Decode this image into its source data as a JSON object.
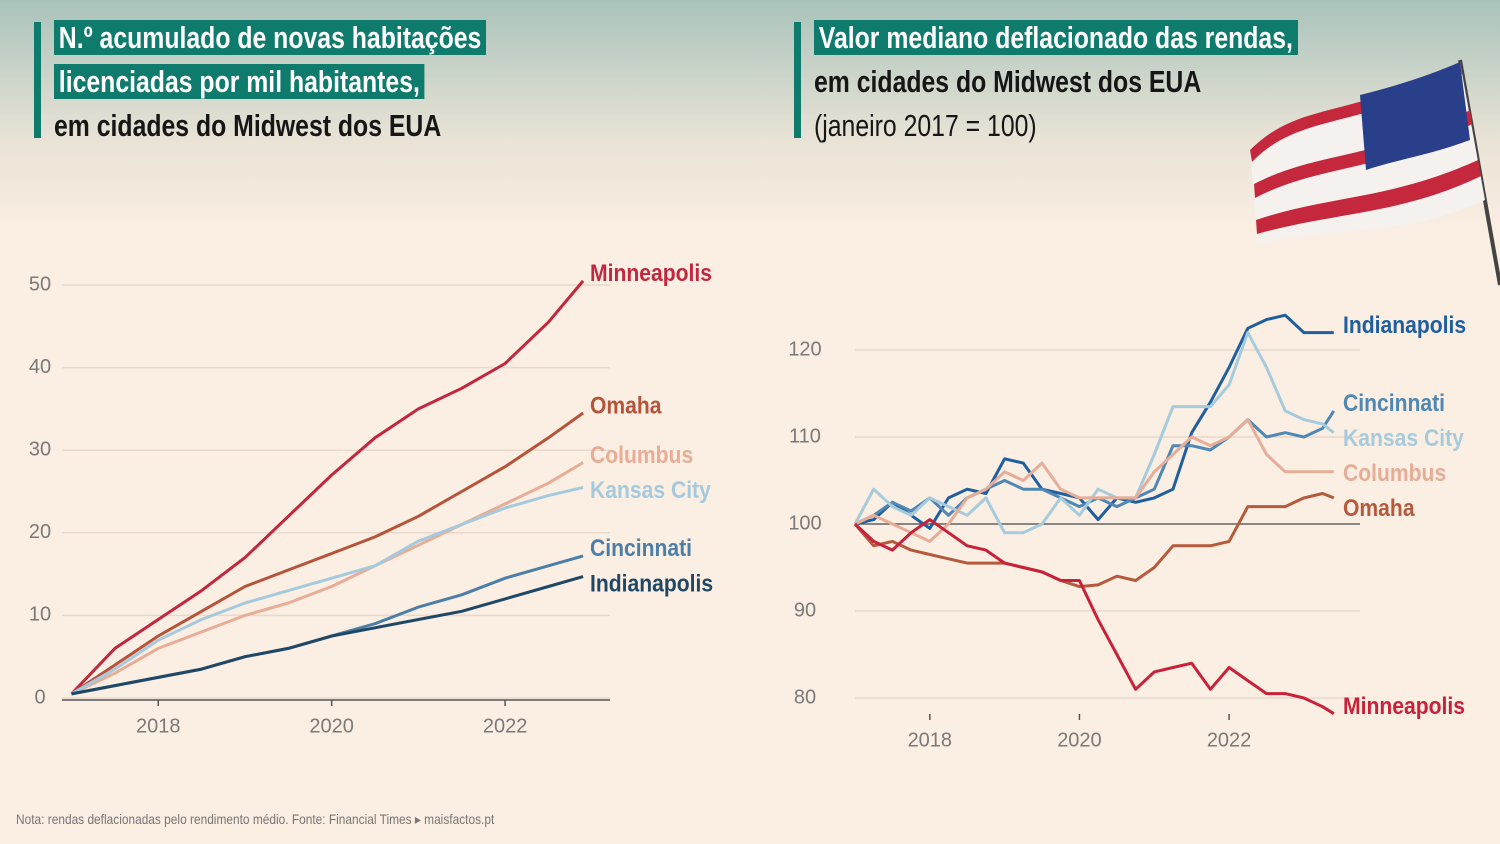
{
  "chart_data": [
    {
      "type": "line",
      "title": "N.º acumulado de novas habitações licenciadas por mil habitantes,",
      "subtitle": "em cidades do Midwest dos EUA",
      "x": [
        2017,
        2017.5,
        2018,
        2018.5,
        2019,
        2019.5,
        2020,
        2020.5,
        2021,
        2021.5,
        2022,
        2022.5,
        2022.9
      ],
      "xlim": [
        2016.89,
        2023.21
      ],
      "xticks": [
        2018,
        2020,
        2022
      ],
      "ylim": [
        0,
        50
      ],
      "yticks": [
        0,
        10,
        20,
        30,
        40,
        50
      ],
      "grid": true,
      "series": [
        {
          "name": "Minneapolis",
          "color": "#c1273f",
          "values": [
            0.5,
            6,
            9.5,
            13,
            17,
            22,
            27,
            31.5,
            35,
            37.5,
            40.5,
            45.5,
            50.5
          ]
        },
        {
          "name": "Omaha",
          "color": "#b5543a",
          "values": [
            0.5,
            4,
            7.5,
            10.5,
            13.5,
            15.5,
            17.5,
            19.5,
            22,
            25,
            28,
            31.5,
            34.5
          ]
        },
        {
          "name": "Columbus",
          "color": "#e8ad96",
          "values": [
            0.5,
            3,
            6,
            8,
            10,
            11.5,
            13.5,
            16,
            18.5,
            21,
            23.5,
            26,
            28.5
          ]
        },
        {
          "name": "Kansas City",
          "color": "#a6cadd",
          "values": [
            0.5,
            3.5,
            7,
            9.5,
            11.5,
            13,
            14.5,
            16,
            19,
            21,
            23,
            24.5,
            25.5
          ]
        },
        {
          "name": "Cincinnati",
          "color": "#4c7fa8",
          "values": [
            0.5,
            1.5,
            2.5,
            3.5,
            5,
            6,
            7.5,
            9,
            11,
            12.5,
            14.5,
            16,
            17.2
          ]
        },
        {
          "name": "Indianapolis",
          "color": "#1f4766",
          "values": [
            0.5,
            1.5,
            2.5,
            3.5,
            5,
            6,
            7.5,
            8.5,
            9.5,
            10.5,
            12,
            13.5,
            14.7
          ]
        }
      ]
    },
    {
      "type": "line",
      "title": "Valor mediano deflacionado das rendas,",
      "subtitle": "em cidades do Midwest dos EUA",
      "y_axis_label": "(janeiro 2017 = 100)",
      "x": [
        2017,
        2017.25,
        2017.5,
        2017.75,
        2018,
        2018.25,
        2018.5,
        2018.75,
        2019,
        2019.25,
        2019.5,
        2019.75,
        2020,
        2020.25,
        2020.5,
        2020.75,
        2021,
        2021.25,
        2021.5,
        2021.75,
        2022,
        2022.25,
        2022.5,
        2022.75,
        2023,
        2023.25,
        2023.4
      ],
      "xlim": [
        2017,
        2023.75
      ],
      "xticks": [
        2018,
        2020,
        2022
      ],
      "ylim": [
        80,
        120
      ],
      "yticks": [
        80,
        90,
        100,
        110,
        120
      ],
      "grid": true,
      "reference_line": 100,
      "series": [
        {
          "name": "Indianapolis",
          "color": "#1f5fa0",
          "values": [
            100,
            100.5,
            102.5,
            101,
            99.5,
            103,
            104,
            103.5,
            107.5,
            107,
            104,
            103.5,
            103,
            100.5,
            103,
            102.5,
            103,
            104,
            110.5,
            114,
            118,
            122.5,
            123.5,
            124,
            122,
            122,
            122
          ]
        },
        {
          "name": "Cincinnati",
          "color": "#4f87b5",
          "values": [
            100,
            101,
            102.5,
            101.5,
            103,
            101,
            103,
            104,
            105,
            104,
            104,
            103,
            102,
            103,
            102,
            103,
            104,
            109,
            109,
            108.5,
            110,
            112,
            110,
            110.5,
            110,
            111,
            113
          ]
        },
        {
          "name": "Kansas City",
          "color": "#a6cbdc",
          "values": [
            100,
            104,
            102,
            101,
            103,
            102,
            101,
            103,
            99,
            99,
            100,
            103,
            101,
            104,
            103,
            103,
            108,
            113.5,
            113.5,
            113.5,
            116,
            122,
            118,
            113,
            112,
            111.5,
            110.5
          ]
        },
        {
          "name": "Columbus",
          "color": "#e6ad98",
          "values": [
            100,
            101,
            100,
            99,
            98,
            100,
            103,
            104,
            106,
            105,
            107,
            104,
            103,
            103,
            103,
            103,
            106,
            108,
            110,
            109,
            110,
            112,
            108,
            106,
            106,
            106,
            106
          ]
        },
        {
          "name": "Omaha",
          "color": "#b65a3e",
          "values": [
            100,
            97.5,
            98,
            97,
            96.5,
            96,
            95.5,
            95.5,
            95.5,
            95,
            94.5,
            93.5,
            92.8,
            93,
            94,
            93.5,
            95,
            97.5,
            97.5,
            97.5,
            98,
            102,
            102,
            102,
            103,
            103.5,
            103
          ]
        },
        {
          "name": "Minneapolis",
          "color": "#c8223a",
          "values": [
            100,
            98,
            97,
            99,
            100.5,
            99,
            97.5,
            97,
            95.5,
            95,
            94.5,
            93.5,
            93.5,
            89,
            85,
            81,
            83,
            83.5,
            84,
            81,
            83.5,
            82,
            80.5,
            80.5,
            80,
            79,
            78.2
          ]
        }
      ]
    }
  ],
  "footer": "Nota: rendas deflacionadas pelo rendimento médio.  Fonte: Financial Times ▸ maisfactos.pt"
}
